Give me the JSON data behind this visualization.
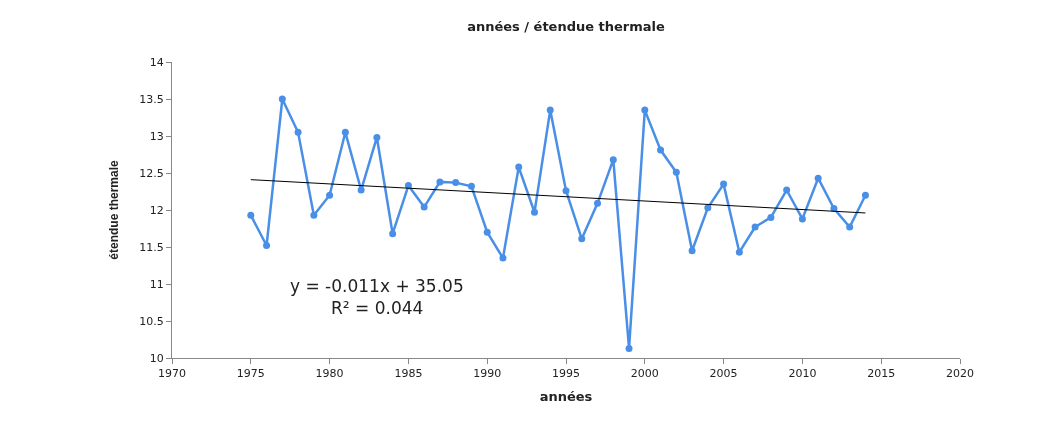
{
  "chart_data": {
    "type": "line",
    "title": "années / étendue thermale",
    "xlabel": "années",
    "ylabel": "étendue thermale",
    "x": [
      1975,
      1976,
      1977,
      1978,
      1979,
      1980,
      1981,
      1982,
      1983,
      1984,
      1985,
      1986,
      1987,
      1988,
      1989,
      1990,
      1991,
      1992,
      1993,
      1994,
      1995,
      1996,
      1997,
      1998,
      1999,
      2000,
      2001,
      2002,
      2003,
      2004,
      2005,
      2006,
      2007,
      2008,
      2009,
      2010,
      2011,
      2012,
      2013,
      2014
    ],
    "series": [
      {
        "color": "#4a8fe7",
        "values": [
          11.93,
          11.52,
          13.5,
          13.05,
          11.93,
          12.2,
          13.05,
          12.27,
          12.98,
          11.68,
          12.33,
          12.04,
          12.38,
          12.37,
          12.32,
          11.7,
          11.35,
          12.58,
          11.97,
          13.35,
          12.26,
          11.61,
          12.09,
          12.68,
          10.13,
          13.35,
          12.81,
          12.51,
          11.45,
          12.03,
          12.35,
          11.43,
          11.77,
          11.9,
          12.27,
          11.88,
          12.43,
          12.02,
          11.77,
          12.2
        ]
      },
      {
        "type": "line",
        "color": "#000000",
        "marker": "none",
        "x": [
          1975,
          2014
        ],
        "values": [
          12.41,
          11.96
        ]
      }
    ],
    "annotations": [
      "y = -0.011x + 35.05",
      "R² = 0.044"
    ],
    "xlim": [
      1970,
      2020
    ],
    "xticks": [
      1970,
      1975,
      1980,
      1985,
      1990,
      1995,
      2000,
      2005,
      2010,
      2015,
      2020
    ],
    "ylim": [
      10,
      14
    ],
    "yticks": [
      10,
      10.5,
      11,
      11.5,
      12,
      12.5,
      13,
      13.5,
      14
    ],
    "marker": "circle"
  }
}
